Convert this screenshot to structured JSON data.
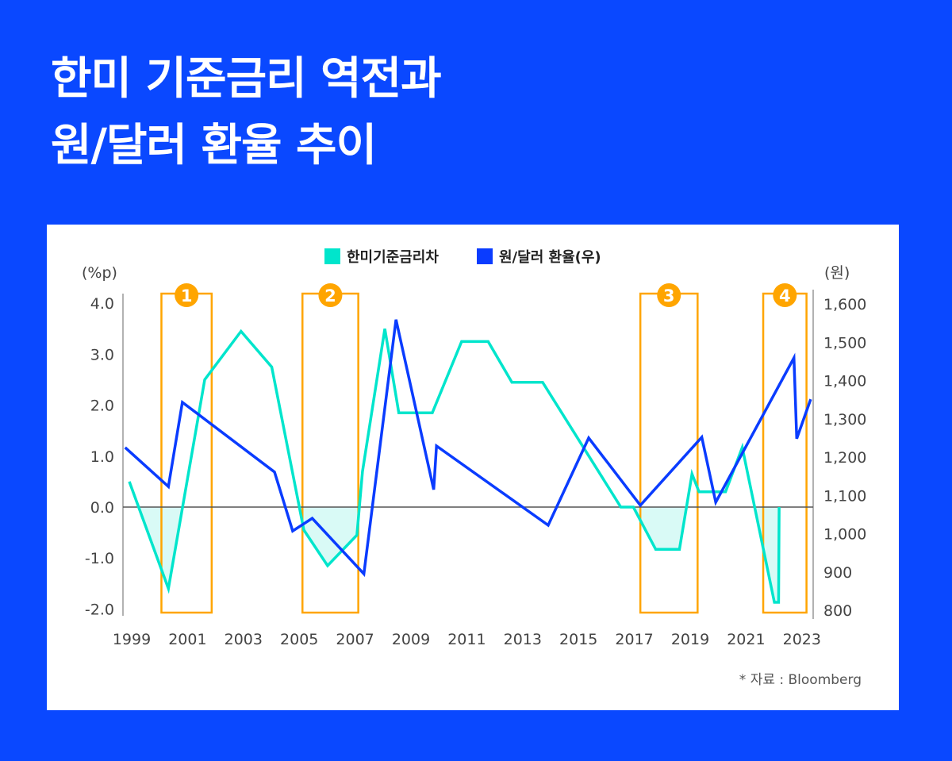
{
  "title": {
    "line1": "한미 기준금리 역전과",
    "line2": "원/달러 환율 추이"
  },
  "source": "* 자료 : Bloomberg",
  "colors": {
    "background": "#0a48ff",
    "rate_diff": "#00e5cc",
    "exchange_rate": "#0a3cff",
    "highlight": "#ffa500",
    "negative_fill": "#d9faf6"
  },
  "chart_data": {
    "type": "line",
    "legend": [
      "한미기준금리차",
      "원/달러 환율(우)"
    ],
    "legend_position": "top",
    "y_left": {
      "unit": "(%p)",
      "range": [
        -2.0,
        4.0
      ],
      "ticks": [
        "4.0",
        "3.0",
        "2.0",
        "1.0",
        "0.0",
        "-1.0",
        "-2.0"
      ]
    },
    "y_right": {
      "unit": "(원)",
      "range": [
        800,
        1600
      ],
      "ticks": [
        "1,600",
        "1,500",
        "1,400",
        "1,300",
        "1,200",
        "1,100",
        "1,000",
        "900",
        "800"
      ]
    },
    "x_ticks": [
      "1999",
      "2001",
      "2003",
      "2005",
      "2007",
      "2009",
      "2011",
      "2013",
      "2015",
      "2017",
      "2019",
      "2021",
      "2023"
    ],
    "series": [
      {
        "name": "한미기준금리차",
        "axis": "left",
        "x": [
          1999.0,
          2000.4,
          2001.7,
          2003.0,
          2004.1,
          2005.25,
          2006.1,
          2007.15,
          2007.35,
          2008.15,
          2008.65,
          2009.85,
          2010.9,
          2011.85,
          2012.7,
          2013.8,
          2016.6,
          2017.05,
          2017.85,
          2018.7,
          2019.15,
          2019.4,
          2020.35,
          2020.95,
          2022.1,
          2022.25,
          2022.27
        ],
        "y": [
          0.5,
          -1.6,
          2.5,
          3.45,
          2.75,
          -0.45,
          -1.15,
          -0.55,
          0.7,
          3.5,
          1.85,
          1.85,
          3.25,
          3.25,
          2.45,
          2.45,
          0,
          0,
          -0.83,
          -0.83,
          0.65,
          0.3,
          0.3,
          1.17,
          -1.87,
          -1.87,
          0
        ]
      },
      {
        "name": "원/달러 환율(우)",
        "axis": "right",
        "x": [
          1998.85,
          2000.4,
          2000.9,
          2004.2,
          2004.85,
          2005.55,
          2007.4,
          2008.55,
          2009.9,
          2010.0,
          2014.0,
          2015.45,
          2017.3,
          2019.5,
          2020.0,
          2022.8,
          2022.9,
          2023.4
        ],
        "y": [
          1225,
          1123,
          1343,
          1161,
          1007,
          1040,
          895,
          1559,
          1115,
          1229,
          1022,
          1250,
          1074,
          1252,
          1082,
          1459,
          1248,
          1351
        ]
      }
    ],
    "highlights": [
      {
        "label": "1",
        "x_range": [
          2000.15,
          2001.95
        ]
      },
      {
        "label": "2",
        "x_range": [
          2005.2,
          2007.2
        ]
      },
      {
        "label": "3",
        "x_range": [
          2017.3,
          2019.35
        ]
      },
      {
        "label": "4",
        "x_range": [
          2021.7,
          2023.25
        ]
      }
    ]
  }
}
